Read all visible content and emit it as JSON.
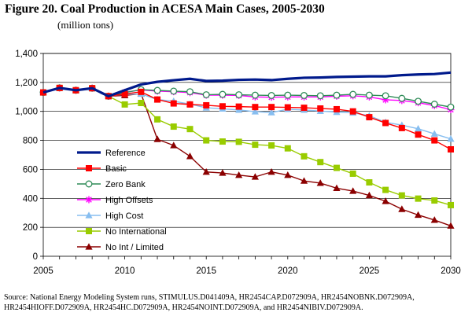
{
  "title": "Figure 20.  Coal Production in ACESA Main Cases, 2005-2030",
  "subtitle": "(million tons)",
  "source": "Source:  National Energy Modeling System runs, STIMULUS.D041409A, HR2454CAP.D072909A, HR2454NOBNK.D072909A, HR2454HIOFF.D072909A, HR2454HC.D072909A, HR2454NOINT.D072909A, and HR2454NIBIV.D072909A.",
  "chart_data": {
    "type": "line",
    "title": "Coal Production in ACESA Main Cases, 2005-2030",
    "ylabel": "million tons",
    "xlim": [
      2005,
      2030
    ],
    "ylim": [
      0,
      1400
    ],
    "x_ticks": [
      2005,
      2010,
      2015,
      2020,
      2025,
      2030
    ],
    "y_ticks": [
      0,
      200,
      400,
      600,
      800,
      1000,
      1200,
      1400
    ],
    "y_tick_labels": [
      "0",
      "200",
      "400",
      "600",
      "800",
      "1,000",
      "1,200",
      "1,400"
    ],
    "legend_position": "left-center",
    "x": [
      2005,
      2006,
      2007,
      2008,
      2009,
      2010,
      2011,
      2012,
      2013,
      2014,
      2015,
      2016,
      2017,
      2018,
      2019,
      2020,
      2021,
      2022,
      2023,
      2024,
      2025,
      2026,
      2027,
      2028,
      2029,
      2030
    ],
    "series": [
      {
        "name": "Reference",
        "color": "#001a8c",
        "marker": "none",
        "values": [
          1131,
          1162,
          1146,
          1160,
          1105,
          1146,
          1186,
          1204,
          1215,
          1225,
          1210,
          1212,
          1218,
          1220,
          1216,
          1225,
          1232,
          1234,
          1238,
          1240,
          1242,
          1242,
          1250,
          1255,
          1258,
          1268
        ]
      },
      {
        "name": "Basic",
        "color": "#ff0000",
        "marker": "square",
        "values": [
          1131,
          1162,
          1146,
          1160,
          1105,
          1120,
          1135,
          1082,
          1055,
          1048,
          1042,
          1035,
          1033,
          1030,
          1030,
          1028,
          1025,
          1020,
          1015,
          1000,
          960,
          920,
          885,
          840,
          800,
          738
        ]
      },
      {
        "name": "Zero Bank",
        "color": "#2e8b57",
        "marker": "circle-open",
        "values": [
          1131,
          1162,
          1146,
          1160,
          1105,
          1130,
          1150,
          1145,
          1140,
          1136,
          1115,
          1118,
          1115,
          1112,
          1110,
          1112,
          1110,
          1108,
          1112,
          1118,
          1112,
          1108,
          1090,
          1070,
          1050,
          1030
        ]
      },
      {
        "name": "High Offsets",
        "color": "#ff00ff",
        "marker": "asterisk",
        "values": [
          1131,
          1162,
          1146,
          1160,
          1105,
          1132,
          1148,
          1140,
          1136,
          1130,
          1112,
          1112,
          1110,
          1100,
          1098,
          1100,
          1100,
          1100,
          1105,
          1108,
          1100,
          1080,
          1075,
          1060,
          1040,
          1012
        ]
      },
      {
        "name": "High Cost",
        "color": "#87bef0",
        "marker": "triangle",
        "values": [
          1131,
          1162,
          1146,
          1160,
          1105,
          1118,
          1120,
          1082,
          1070,
          1050,
          1025,
          1018,
          1010,
          998,
          992,
          1015,
          1010,
          1002,
          995,
          990,
          970,
          925,
          905,
          880,
          845,
          810
        ]
      },
      {
        "name": "No International",
        "color": "#99cc00",
        "marker": "square",
        "values": [
          1131,
          1162,
          1146,
          1160,
          1105,
          1048,
          1058,
          945,
          895,
          878,
          800,
          792,
          790,
          770,
          765,
          745,
          690,
          650,
          610,
          570,
          510,
          458,
          420,
          398,
          385,
          353
        ]
      },
      {
        "name": "No Int / Limited",
        "color": "#8b0000",
        "marker": "triangle",
        "values": [
          1131,
          1162,
          1146,
          1160,
          1105,
          1110,
          1122,
          808,
          765,
          690,
          582,
          575,
          560,
          548,
          582,
          560,
          520,
          505,
          470,
          450,
          420,
          380,
          325,
          285,
          250,
          210
        ]
      }
    ]
  }
}
